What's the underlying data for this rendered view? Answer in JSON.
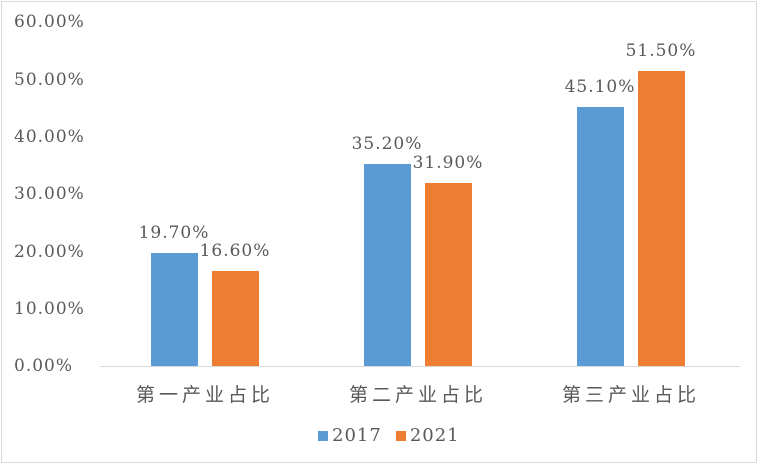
{
  "chart_data": {
    "type": "bar",
    "title": "",
    "xlabel": "",
    "ylabel": "",
    "categories": [
      "第一产业占比",
      "第二产业占比",
      "第三产业占比"
    ],
    "series": [
      {
        "name": "2017",
        "color": "#5b9bd5",
        "values": [
          19.7,
          35.2,
          45.1
        ],
        "labels": [
          "19.70%",
          "35.20%",
          "45.10%"
        ]
      },
      {
        "name": "2021",
        "color": "#ed7d31",
        "values": [
          16.6,
          31.9,
          51.5
        ],
        "labels": [
          "16.60%",
          "31.90%",
          "51.50%"
        ]
      }
    ],
    "ylim": [
      0,
      60
    ],
    "yticks": [
      "0.00%",
      "10.00%",
      "20.00%",
      "30.00%",
      "40.00%",
      "50.00%",
      "60.00%"
    ],
    "grid": false,
    "legend_position": "bottom"
  }
}
